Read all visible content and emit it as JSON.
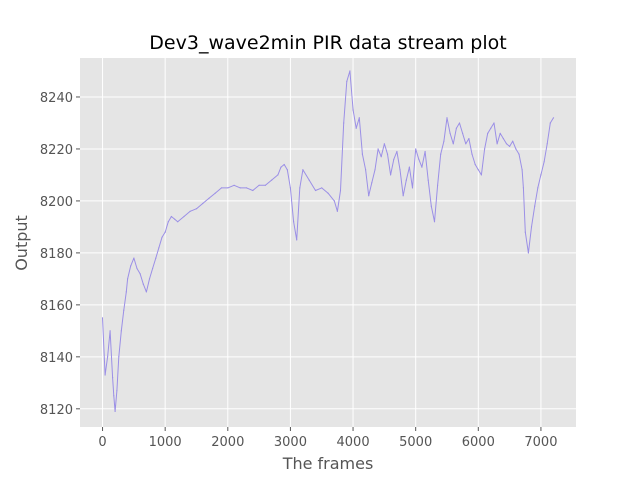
{
  "chart_data": {
    "type": "line",
    "title": "Dev3_wave2min PIR data stream plot",
    "xlabel": "The frames",
    "ylabel": "Output",
    "xlim": [
      -360,
      7560
    ],
    "ylim": [
      8113,
      8255
    ],
    "xticks": [
      0,
      1000,
      2000,
      3000,
      4000,
      5000,
      6000,
      7000
    ],
    "yticks": [
      8120,
      8140,
      8160,
      8180,
      8200,
      8220,
      8240
    ],
    "grid": true,
    "legend": "none",
    "colors": {
      "line": "#9b8fe6",
      "background": "#e5e5e5",
      "grid": "#ffffff",
      "tick": "#555555"
    },
    "series": [
      {
        "x": [
          0,
          40,
          80,
          120,
          160,
          180,
          200,
          230,
          260,
          300,
          340,
          380,
          400,
          450,
          500,
          550,
          600,
          650,
          700,
          750,
          800,
          850,
          900,
          950,
          1000,
          1050,
          1100,
          1150,
          1200,
          1300,
          1400,
          1500,
          1600,
          1700,
          1800,
          1900,
          2000,
          2100,
          2200,
          2300,
          2400,
          2500,
          2600,
          2700,
          2800,
          2850,
          2900,
          2950,
          3000,
          3050,
          3100,
          3150,
          3200,
          3300,
          3400,
          3500,
          3600,
          3700,
          3750,
          3800,
          3850,
          3900,
          3950,
          4000,
          4050,
          4100,
          4150,
          4200,
          4250,
          4300,
          4350,
          4400,
          4450,
          4500,
          4550,
          4600,
          4650,
          4700,
          4750,
          4800,
          4850,
          4900,
          4950,
          5000,
          5050,
          5100,
          5150,
          5200,
          5250,
          5300,
          5350,
          5400,
          5450,
          5500,
          5550,
          5600,
          5650,
          5700,
          5750,
          5800,
          5850,
          5900,
          5950,
          6000,
          6050,
          6100,
          6150,
          6200,
          6250,
          6300,
          6350,
          6400,
          6450,
          6500,
          6550,
          6600,
          6650,
          6700,
          6720,
          6750,
          6800,
          6850,
          6900,
          6950,
          7000,
          7050,
          7100,
          7150,
          7200
        ],
        "y": [
          8155,
          8133,
          8140,
          8150,
          8132,
          8125,
          8119,
          8127,
          8140,
          8150,
          8158,
          8165,
          8170,
          8175,
          8178,
          8174,
          8172,
          8168,
          8165,
          8170,
          8174,
          8178,
          8182,
          8186,
          8188,
          8192,
          8194,
          8193,
          8192,
          8194,
          8196,
          8197,
          8199,
          8201,
          8203,
          8205,
          8205,
          8206,
          8205,
          8205,
          8204,
          8206,
          8206,
          8208,
          8210,
          8213,
          8214,
          8212,
          8205,
          8192,
          8185,
          8205,
          8212,
          8208,
          8204,
          8205,
          8203,
          8200,
          8196,
          8204,
          8230,
          8246,
          8250,
          8235,
          8228,
          8232,
          8218,
          8212,
          8202,
          8207,
          8212,
          8220,
          8217,
          8222,
          8218,
          8210,
          8216,
          8219,
          8212,
          8202,
          8208,
          8213,
          8205,
          8220,
          8216,
          8213,
          8219,
          8208,
          8198,
          8192,
          8206,
          8218,
          8223,
          8232,
          8226,
          8222,
          8228,
          8230,
          8226,
          8222,
          8224,
          8218,
          8214,
          8212,
          8210,
          8220,
          8226,
          8228,
          8230,
          8222,
          8226,
          8224,
          8222,
          8221,
          8223,
          8220,
          8218,
          8212,
          8205,
          8188,
          8180,
          8190,
          8198,
          8205,
          8210,
          8215,
          8222,
          8230,
          8232
        ]
      }
    ]
  }
}
